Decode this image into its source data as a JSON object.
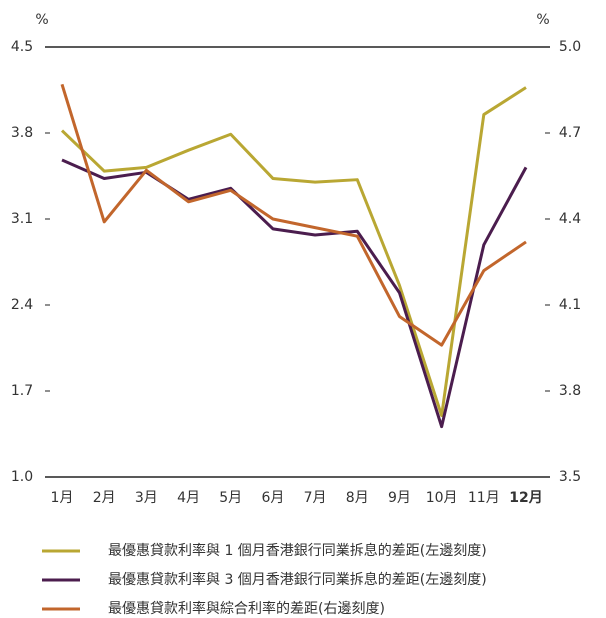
{
  "chart_data": {
    "type": "line",
    "y_label": "%",
    "y2_label": "%",
    "categories": [
      "1月",
      "2月",
      "3月",
      "4月",
      "5月",
      "6月",
      "7月",
      "8月",
      "9月",
      "10月",
      "11月",
      "12月"
    ],
    "series": [
      {
        "name": "最優惠貸款利率與 1 個月香港銀行同業拆息的差距(左邊刻度)",
        "color": "#b9a733",
        "values": [
          3.82,
          3.49,
          3.52,
          3.66,
          3.79,
          3.43,
          3.4,
          3.42,
          2.56,
          1.5,
          3.95,
          4.17
        ]
      },
      {
        "name": "最優惠貸款利率與 3 個月香港銀行同業拆息的差距(左邊刻度)",
        "color": "#4b1d4e",
        "values": [
          3.58,
          3.43,
          3.48,
          3.26,
          3.35,
          3.02,
          2.97,
          3.0,
          2.5,
          1.41,
          2.89,
          3.52
        ]
      },
      {
        "name": "最優惠貸款利率與綜合利率的差距(右邊刻度)",
        "color": "#c2662c",
        "axis": "y2",
        "values": [
          4.87,
          4.39,
          4.57,
          4.46,
          4.5,
          4.4,
          4.37,
          4.34,
          4.06,
          3.96,
          4.22,
          4.32
        ]
      }
    ],
    "ylim": [
      1.0,
      4.5
    ],
    "yticks": [
      4.5,
      3.8,
      3.1,
      2.4,
      1.7,
      {
        "value": 1.0,
        "label": "1.0"
      }
    ],
    "y2lim": [
      3.5,
      5.0
    ],
    "y2ticks": [
      {
        "value": 5.0,
        "label": "5.0"
      },
      4.7,
      4.4,
      4.1,
      3.8,
      3.5
    ]
  }
}
